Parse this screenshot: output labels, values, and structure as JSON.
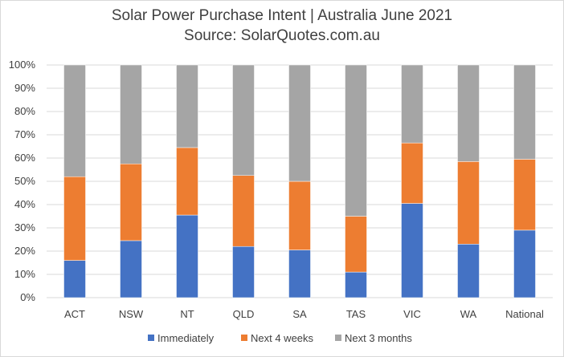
{
  "chart_data": {
    "type": "bar",
    "stacked": true,
    "title": "Solar Power Purchase Intent | Australia June 2021",
    "subtitle": "Source: SolarQuotes.com.au",
    "categories": [
      "ACT",
      "NSW",
      "NT",
      "QLD",
      "SA",
      "TAS",
      "VIC",
      "WA",
      "National"
    ],
    "series": [
      {
        "name": "Immediately",
        "color": "#4472c4",
        "values": [
          16,
          24.5,
          35.5,
          22,
          20.5,
          11,
          40.5,
          23,
          29
        ]
      },
      {
        "name": "Next 4 weeks",
        "color": "#ed7d31",
        "values": [
          36,
          33,
          29,
          30.5,
          29.5,
          24,
          26,
          35.5,
          30.5
        ]
      },
      {
        "name": "Next 3 months",
        "color": "#a5a5a5",
        "values": [
          48,
          42.5,
          35.5,
          47.5,
          50,
          65,
          33.5,
          41.5,
          40.5
        ]
      }
    ],
    "yticks": [
      "0%",
      "10%",
      "20%",
      "30%",
      "40%",
      "50%",
      "60%",
      "70%",
      "80%",
      "90%",
      "100%"
    ],
    "ylim": [
      0,
      100
    ],
    "grid": true,
    "legend_position": "bottom"
  }
}
